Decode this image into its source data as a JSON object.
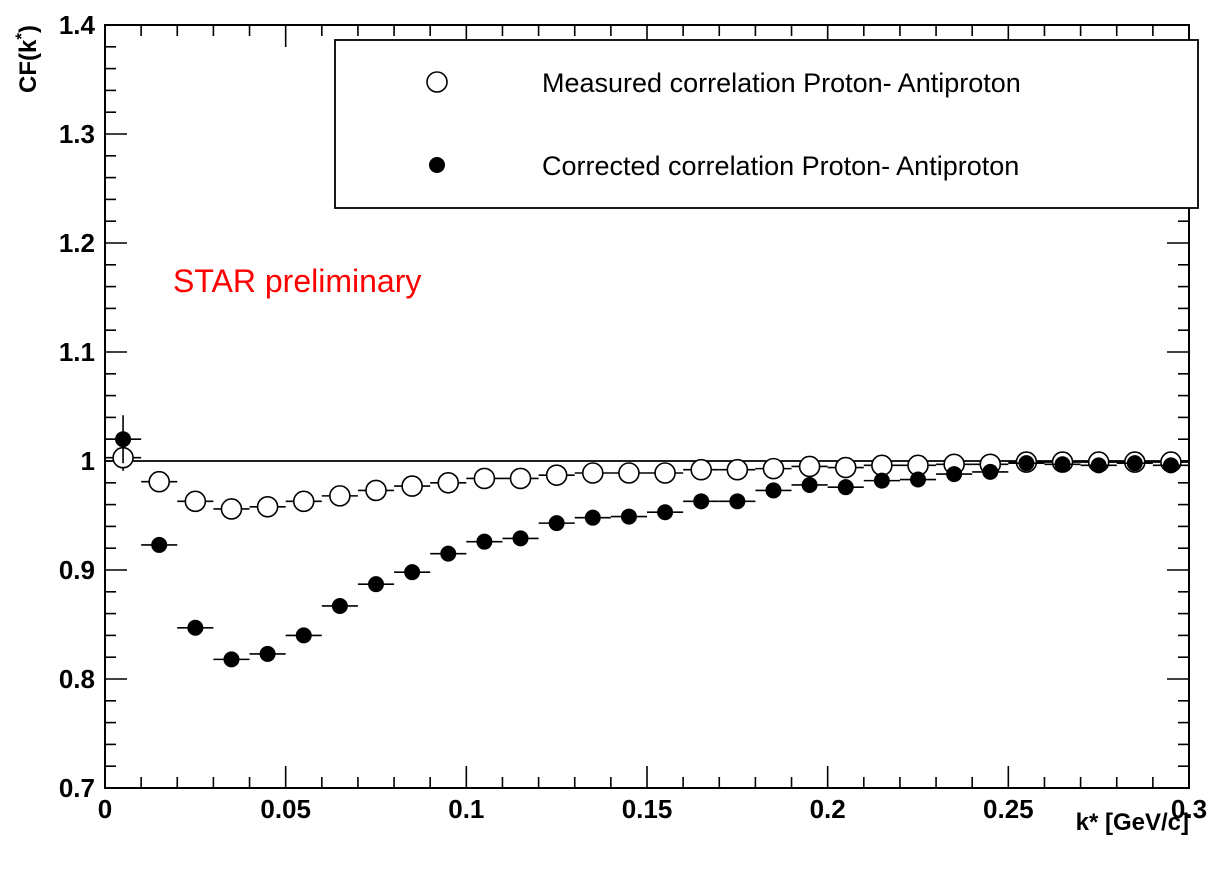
{
  "chart_data": {
    "type": "scatter",
    "xlabel": "k* [GeV/c]",
    "ylabel_main": "CF(k",
    "ylabel_sup": "*",
    "ylabel_close": ")",
    "xlim": [
      0,
      0.3
    ],
    "ylim": [
      0.7,
      1.4
    ],
    "x_ticks": [
      {
        "value": 0,
        "label": "0"
      },
      {
        "value": 0.05,
        "label": "0.05"
      },
      {
        "value": 0.1,
        "label": "0.1"
      },
      {
        "value": 0.15,
        "label": "0.15"
      },
      {
        "value": 0.2,
        "label": "0.2"
      },
      {
        "value": 0.25,
        "label": "0.25"
      },
      {
        "value": 0.3,
        "label": "0.3"
      }
    ],
    "y_ticks": [
      {
        "value": 0.7,
        "label": "0.7"
      },
      {
        "value": 0.8,
        "label": "0.8"
      },
      {
        "value": 0.9,
        "label": "0.9"
      },
      {
        "value": 1.0,
        "label": "1"
      },
      {
        "value": 1.1,
        "label": "1.1"
      },
      {
        "value": 1.2,
        "label": "1.2"
      },
      {
        "value": 1.3,
        "label": "1.3"
      },
      {
        "value": 1.4,
        "label": "1.4"
      }
    ],
    "reference_line": 1.0,
    "bin_width": 0.01,
    "legend_position": "top-right",
    "annotation": {
      "text": "STAR preliminary",
      "color": "#ff0000"
    },
    "series": [
      {
        "name": "Measured correlation Proton- Antiproton",
        "marker": "open-circle",
        "x": [
          0.005,
          0.015,
          0.025,
          0.035,
          0.045,
          0.055,
          0.065,
          0.075,
          0.085,
          0.095,
          0.105,
          0.115,
          0.125,
          0.135,
          0.145,
          0.155,
          0.165,
          0.175,
          0.185,
          0.195,
          0.205,
          0.215,
          0.225,
          0.235,
          0.245,
          0.255,
          0.265,
          0.275,
          0.285,
          0.295
        ],
        "y": [
          1.003,
          0.981,
          0.963,
          0.956,
          0.958,
          0.963,
          0.968,
          0.973,
          0.977,
          0.98,
          0.984,
          0.984,
          0.987,
          0.989,
          0.989,
          0.989,
          0.992,
          0.992,
          0.993,
          0.995,
          0.994,
          0.996,
          0.996,
          0.997,
          0.997,
          0.999,
          0.999,
          0.999,
          0.999,
          0.999
        ],
        "yerr": [
          0.012,
          0.005,
          0.004,
          0.003,
          0.003,
          0.003,
          0.003,
          0.002,
          0.002,
          0.002,
          0.002,
          0.002,
          0.002,
          0.002,
          0.002,
          0.002,
          0.002,
          0.002,
          0.002,
          0.002,
          0.002,
          0.002,
          0.002,
          0.002,
          0.002,
          0.002,
          0.002,
          0.002,
          0.002,
          0.002
        ]
      },
      {
        "name": "Corrected correlation Proton- Antiproton",
        "marker": "filled-circle",
        "x": [
          0.005,
          0.015,
          0.025,
          0.035,
          0.045,
          0.055,
          0.065,
          0.075,
          0.085,
          0.095,
          0.105,
          0.115,
          0.125,
          0.135,
          0.145,
          0.155,
          0.165,
          0.175,
          0.185,
          0.195,
          0.205,
          0.215,
          0.225,
          0.235,
          0.245,
          0.255,
          0.265,
          0.275,
          0.285,
          0.295
        ],
        "y": [
          1.02,
          0.923,
          0.847,
          0.818,
          0.823,
          0.84,
          0.867,
          0.887,
          0.898,
          0.915,
          0.926,
          0.929,
          0.943,
          0.948,
          0.949,
          0.953,
          0.963,
          0.963,
          0.973,
          0.978,
          0.976,
          0.982,
          0.983,
          0.988,
          0.99,
          0.998,
          0.997,
          0.996,
          0.998,
          0.996
        ],
        "yerr": [
          0.022,
          0.006,
          0.005,
          0.004,
          0.004,
          0.003,
          0.003,
          0.003,
          0.003,
          0.003,
          0.003,
          0.003,
          0.003,
          0.003,
          0.003,
          0.003,
          0.003,
          0.003,
          0.003,
          0.003,
          0.003,
          0.003,
          0.003,
          0.003,
          0.003,
          0.003,
          0.003,
          0.003,
          0.003,
          0.003
        ]
      }
    ]
  }
}
